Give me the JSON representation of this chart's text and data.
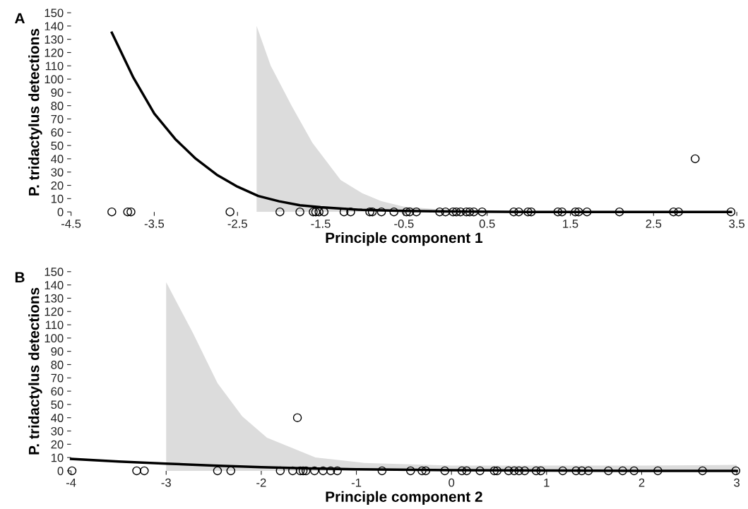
{
  "chart_data": [
    {
      "type": "scatter",
      "annotations": [
        "A"
      ],
      "xlabel": "Principle component 1",
      "ylabel": "P. tridactylus detections",
      "xlim": [
        -4.5,
        3.5
      ],
      "xticks": [
        -4.5,
        -3.5,
        -2.5,
        -1.5,
        -0.5,
        0.5,
        1.5,
        2.5,
        3.5
      ],
      "ylim": [
        0,
        150
      ],
      "yticks": [
        0,
        10,
        20,
        30,
        40,
        50,
        60,
        70,
        80,
        90,
        100,
        110,
        120,
        130,
        140,
        150
      ],
      "grid": false,
      "series": [
        {
          "type": "area",
          "color": "#dcdcdc",
          "x": [
            -2.27,
            -2.1,
            -1.85,
            -1.6,
            -1.26,
            -1.0,
            -0.77,
            -0.5,
            0,
            0.5,
            3.43
          ],
          "values": [
            140,
            110,
            80,
            52,
            24,
            14,
            8,
            4,
            1.5,
            0.5,
            0
          ]
        },
        {
          "type": "line",
          "color": "#000000",
          "line_style": "solid",
          "x": [
            -4.01,
            -3.75,
            -3.5,
            -3.25,
            -3.0,
            -2.75,
            -2.5,
            -2.25,
            -2.0,
            -1.75,
            -1.5,
            -1.0,
            -0.5,
            0,
            1,
            2,
            3.43
          ],
          "values": [
            135,
            101,
            74,
            55,
            40,
            28,
            19,
            12,
            8,
            5,
            3.5,
            1.5,
            0.7,
            0.3,
            0,
            0,
            0
          ]
        },
        {
          "marker": "circle",
          "color": "#000000",
          "x": [
            -4.01,
            -3.82,
            -3.78,
            -2.59,
            -1.99,
            -1.75,
            -1.59,
            -1.56,
            -1.52,
            -1.46,
            -1.22,
            -1.14,
            -0.91,
            -0.88,
            -0.77,
            -0.62,
            -0.47,
            -0.43,
            -0.35,
            -0.07,
            0.0,
            0.09,
            0.13,
            0.18,
            0.25,
            0.29,
            0.34,
            0.44,
            0.82,
            0.88,
            0.99,
            1.03,
            1.35,
            1.4,
            1.56,
            1.6,
            1.7,
            2.09,
            2.74,
            2.8,
            3.43,
            3.0
          ],
          "values": [
            0,
            0,
            0,
            0,
            0,
            0,
            0,
            0,
            0,
            0,
            0,
            0,
            0,
            0,
            0,
            0,
            0,
            0,
            0,
            0,
            0,
            0,
            0,
            0,
            0,
            0,
            0,
            0,
            0,
            0,
            0,
            0,
            0,
            0,
            0,
            0,
            0,
            0,
            0,
            0,
            0,
            40
          ]
        }
      ]
    },
    {
      "type": "scatter",
      "annotations": [
        "B"
      ],
      "xlabel": "Principle component 2",
      "ylabel": "P. tridactylus detections",
      "xlim": [
        -4,
        3
      ],
      "xticks": [
        -4,
        -3,
        -2,
        -1,
        0,
        1,
        2,
        3
      ],
      "ylim": [
        0,
        150
      ],
      "yticks": [
        0,
        10,
        20,
        30,
        40,
        50,
        60,
        70,
        80,
        90,
        100,
        110,
        120,
        130,
        140,
        150
      ],
      "grid": false,
      "series": [
        {
          "type": "area",
          "color": "#dcdcdc",
          "x": [
            -3.0,
            -2.72,
            -2.46,
            -2.2,
            -1.94,
            -1.43,
            -0.92,
            0,
            1,
            2,
            3
          ],
          "values": [
            142,
            104,
            66,
            41,
            25,
            10,
            6,
            4,
            4,
            4,
            4.5
          ]
        },
        {
          "type": "line",
          "color": "#000000",
          "line_style": "solid",
          "x": [
            -4.0,
            -3.5,
            -3.0,
            -2.5,
            -2.0,
            -1.5,
            -1.0,
            0,
            1,
            2,
            3
          ],
          "values": [
            9,
            7,
            5.4,
            4,
            2.7,
            1.8,
            1.2,
            0.5,
            0.2,
            0,
            0
          ]
        },
        {
          "marker": "circle",
          "color": "#000000",
          "x": [
            -3.99,
            -3.31,
            -3.23,
            -2.46,
            -2.32,
            -1.8,
            -1.67,
            -1.59,
            -1.56,
            -1.53,
            -1.44,
            -1.35,
            -1.27,
            -1.2,
            -0.73,
            -0.43,
            -0.31,
            -0.27,
            -0.07,
            0.11,
            0.16,
            0.3,
            0.45,
            0.48,
            0.6,
            0.66,
            0.71,
            0.77,
            0.89,
            0.94,
            1.17,
            1.31,
            1.37,
            1.44,
            1.65,
            1.8,
            1.92,
            2.17,
            2.64,
            2.99,
            -1.62
          ],
          "values": [
            0,
            0,
            0,
            0,
            0,
            0,
            0,
            0,
            0,
            0,
            0,
            0,
            0,
            0,
            0,
            0,
            0,
            0,
            0,
            0,
            0,
            0,
            0,
            0,
            0,
            0,
            0,
            0,
            0,
            0,
            0,
            0,
            0,
            0,
            0,
            0,
            0,
            0,
            0,
            0,
            40
          ]
        }
      ]
    }
  ]
}
